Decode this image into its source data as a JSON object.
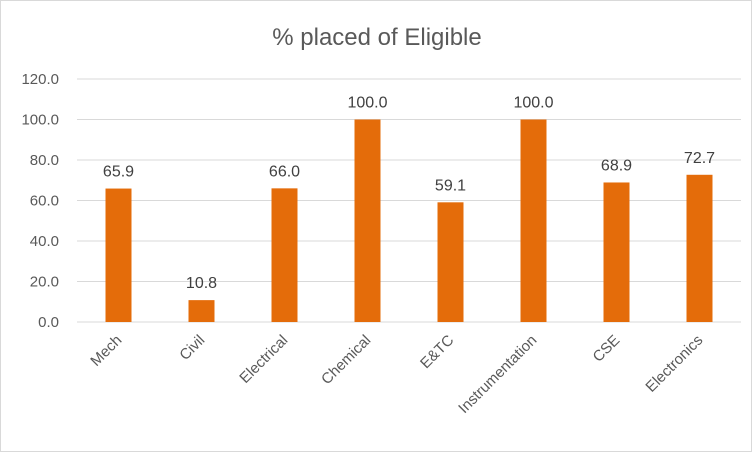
{
  "chart_data": {
    "type": "bar",
    "title": "% placed of Eligible",
    "categories": [
      "Mech",
      "Civil",
      "Electrical",
      "Chemical",
      "E&TC",
      "Instrumentation",
      "CSE",
      "Electronics"
    ],
    "series": [
      {
        "values": [
          65.9,
          10.8,
          66.0,
          100.0,
          59.1,
          100.0,
          68.9,
          72.7
        ],
        "color": "#E46C0A"
      }
    ],
    "data_labels": [
      "65.9",
      "10.8",
      "66.0",
      "100.0",
      "59.1",
      "100.0",
      "68.9",
      "72.7"
    ],
    "y_ticks": [
      0,
      20,
      40,
      60,
      80,
      100,
      120
    ],
    "y_tick_labels": [
      "0.0",
      "20.0",
      "40.0",
      "60.0",
      "80.0",
      "100.0",
      "120.0"
    ],
    "ylim": [
      0,
      120
    ],
    "xlabel": "",
    "ylabel": "",
    "grid": "horizontal",
    "legend": "none",
    "colors": {
      "bar": "#E46C0A",
      "grid": "#d9d9d9",
      "text": "#595959",
      "label": "#404040"
    }
  }
}
